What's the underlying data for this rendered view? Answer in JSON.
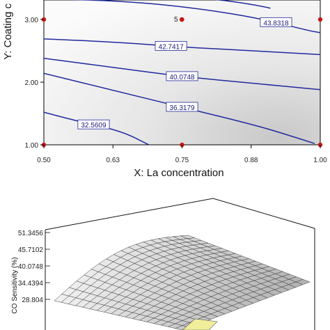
{
  "chart_data": [
    {
      "type": "contour",
      "xlabel": "X: La concentration",
      "ylabel": "Y: Coating c",
      "x_ticks": [
        "0.50",
        "0.63",
        "0.75",
        "0.88",
        "1.00"
      ],
      "y_ticks": [
        "1.00",
        "2.00",
        "3.00"
      ],
      "xlim": [
        0.5,
        1.0
      ],
      "ylim": [
        1.0,
        3.5
      ],
      "grid": false,
      "center_point_label": "5",
      "design_points": [
        {
          "x": 0.5,
          "y": 1.0
        },
        {
          "x": 0.75,
          "y": 1.0
        },
        {
          "x": 1.0,
          "y": 1.0
        },
        {
          "x": 0.5,
          "y": 3.0
        },
        {
          "x": 0.75,
          "y": 3.0
        },
        {
          "x": 1.0,
          "y": 3.0
        }
      ],
      "contours": [
        {
          "label": "32.5609",
          "points": [
            [
              0.5,
              1.52
            ],
            [
              0.56,
              1.38
            ],
            [
              0.64,
              1.22
            ],
            [
              0.69,
              1.0
            ]
          ]
        },
        {
          "label": "36.3179",
          "points": [
            [
              0.5,
              2.14
            ],
            [
              0.63,
              1.86
            ],
            [
              0.75,
              1.6
            ],
            [
              0.88,
              1.32
            ],
            [
              0.94,
              1.16
            ],
            [
              0.99,
              1.02
            ]
          ]
        },
        {
          "label": "40.0748",
          "points": [
            [
              0.5,
              2.38
            ],
            [
              0.63,
              2.23
            ],
            [
              0.75,
              2.09
            ],
            [
              0.88,
              1.98
            ],
            [
              1.0,
              1.88
            ]
          ]
        },
        {
          "label": "42.7417",
          "points": [
            [
              0.5,
              2.69
            ],
            [
              0.63,
              2.64
            ],
            [
              0.75,
              2.56
            ],
            [
              0.88,
              2.5
            ],
            [
              1.0,
              2.44
            ]
          ]
        },
        {
          "label": "43.8318",
          "points": [
            [
              0.5,
              3.33
            ],
            [
              0.63,
              3.3
            ],
            [
              0.75,
              3.21
            ],
            [
              0.88,
              3.04
            ],
            [
              0.98,
              2.82
            ],
            [
              1.0,
              2.79
            ]
          ]
        },
        {
          "label": "",
          "points": [
            [
              0.5,
              3.5
            ],
            [
              0.63,
              3.44
            ],
            [
              0.75,
              3.38
            ],
            [
              0.85,
              3.28
            ],
            [
              0.9,
              3.2
            ],
            [
              0.91,
              3.18
            ]
          ]
        }
      ]
    },
    {
      "type": "surface",
      "zlabel": "CO Sensitivity (%)",
      "z_ticks": [
        "28.804",
        "34.4394",
        "40.0748",
        "45.7102",
        "51.3456"
      ],
      "zlim": [
        28.804,
        51.3456
      ]
    }
  ]
}
